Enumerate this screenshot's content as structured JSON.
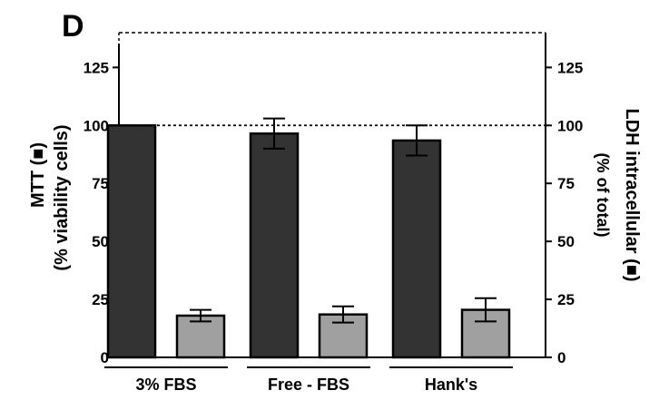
{
  "chart_data": {
    "type": "bar",
    "panel_label": "D",
    "categories": [
      "3% FBS",
      "Free - FBS",
      "Hank's"
    ],
    "series": [
      {
        "name": "MTT",
        "values": [
          100,
          96.5,
          93.5
        ],
        "error": [
          0,
          6.5,
          6.5
        ],
        "color": "#333333"
      },
      {
        "name": "LDH intracellular",
        "values": [
          18,
          18.5,
          20.5
        ],
        "error": [
          2.5,
          3.5,
          5
        ],
        "color": "#a0a0a0"
      }
    ],
    "y_left": {
      "label_line1": "MTT (■)",
      "label_line2": "(% viability cells)",
      "ylim": [
        0,
        140
      ],
      "ticks": [
        "0",
        "25",
        "50",
        "75",
        "100",
        "125"
      ]
    },
    "y_right": {
      "label_line1": "LDH intracellular (■)",
      "label_line2": "(% of total)",
      "ylim": [
        0,
        140
      ],
      "ticks": [
        "0",
        "25",
        "50",
        "75",
        "100",
        "125"
      ]
    },
    "reference_line": 100
  }
}
